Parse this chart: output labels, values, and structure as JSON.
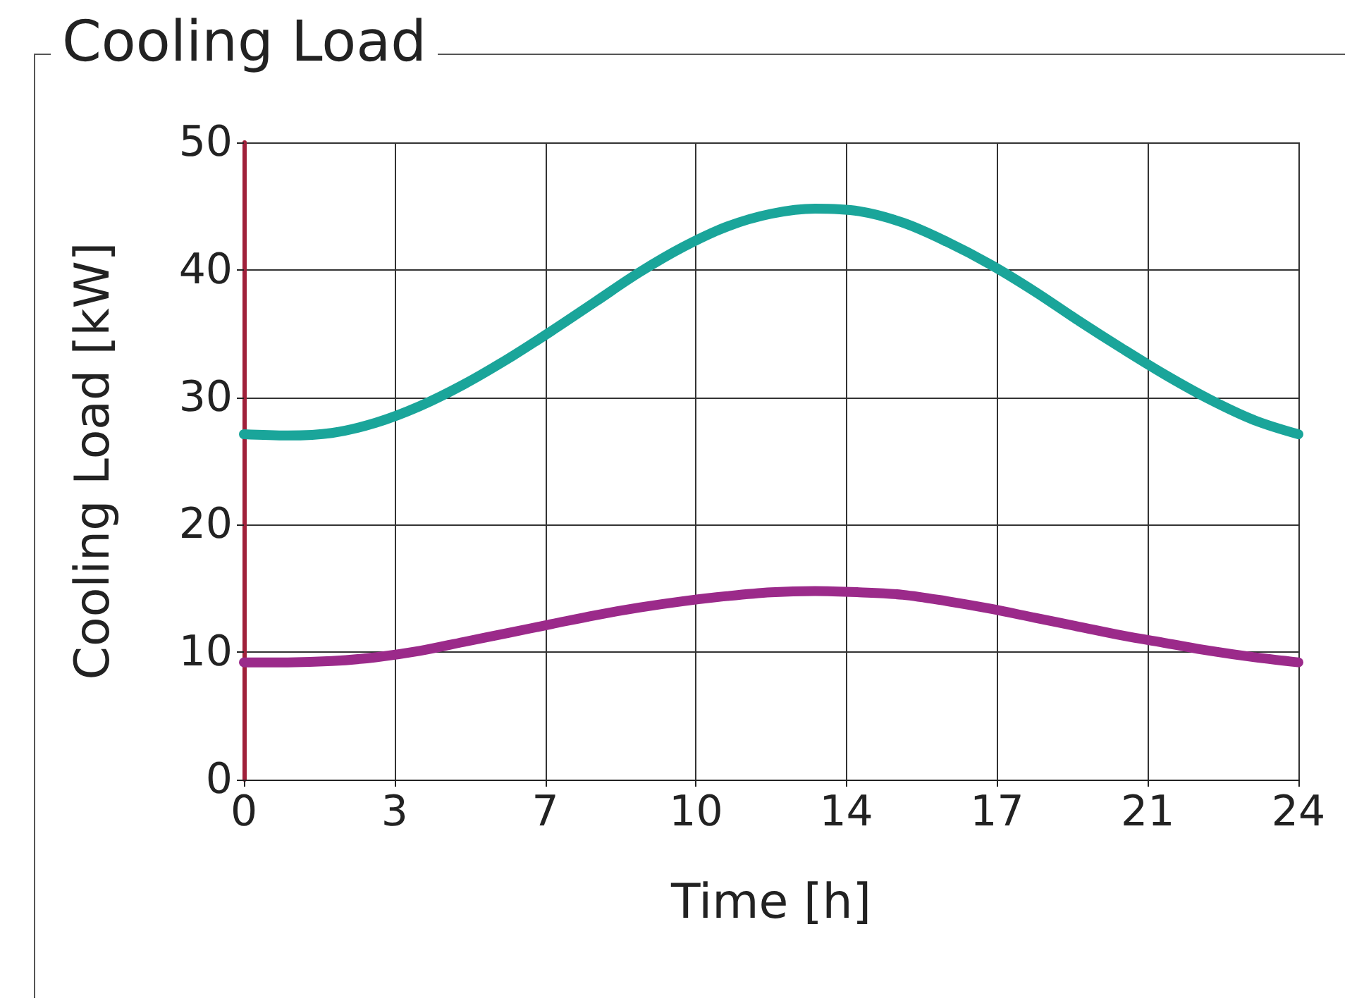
{
  "chart_data": {
    "type": "line",
    "title": "Cooling Load",
    "xlabel": "Time [h]",
    "ylabel": "Cooling Load [kW]",
    "x": [
      0,
      1,
      2,
      3,
      4,
      5,
      6,
      7,
      8,
      9,
      10,
      11,
      12,
      13,
      14,
      15,
      16,
      17,
      18,
      19,
      20,
      21,
      22,
      23,
      24
    ],
    "series": [
      {
        "color": "#1aa59a",
        "values": [
          27.1,
          27.0,
          27.2,
          28.0,
          29.3,
          31.0,
          33.0,
          35.2,
          37.5,
          39.8,
          41.8,
          43.4,
          44.4,
          44.8,
          44.6,
          43.7,
          42.2,
          40.4,
          38.3,
          36.0,
          33.8,
          31.7,
          29.8,
          28.2,
          27.1
        ]
      },
      {
        "color": "#9b2a8a",
        "values": [
          9.2,
          9.2,
          9.3,
          9.6,
          10.1,
          10.8,
          11.5,
          12.2,
          12.9,
          13.5,
          14.0,
          14.4,
          14.7,
          14.8,
          14.7,
          14.5,
          14.0,
          13.4,
          12.7,
          12.0,
          11.3,
          10.7,
          10.1,
          9.6,
          9.2
        ]
      }
    ],
    "xlim": [
      0,
      24
    ],
    "xticks": [
      0,
      {
        "value": 3.43,
        "label": "3"
      },
      {
        "value": 6.86,
        "label": "7"
      },
      {
        "value": 10.29,
        "label": "10"
      },
      {
        "value": 13.71,
        "label": "14"
      },
      {
        "value": 17.14,
        "label": "17"
      },
      {
        "value": 20.57,
        "label": "21"
      },
      24
    ],
    "ylim": [
      0,
      50
    ],
    "yticks": [
      0,
      10,
      20,
      30,
      40,
      50
    ],
    "grid": true,
    "line_style": "solid"
  }
}
